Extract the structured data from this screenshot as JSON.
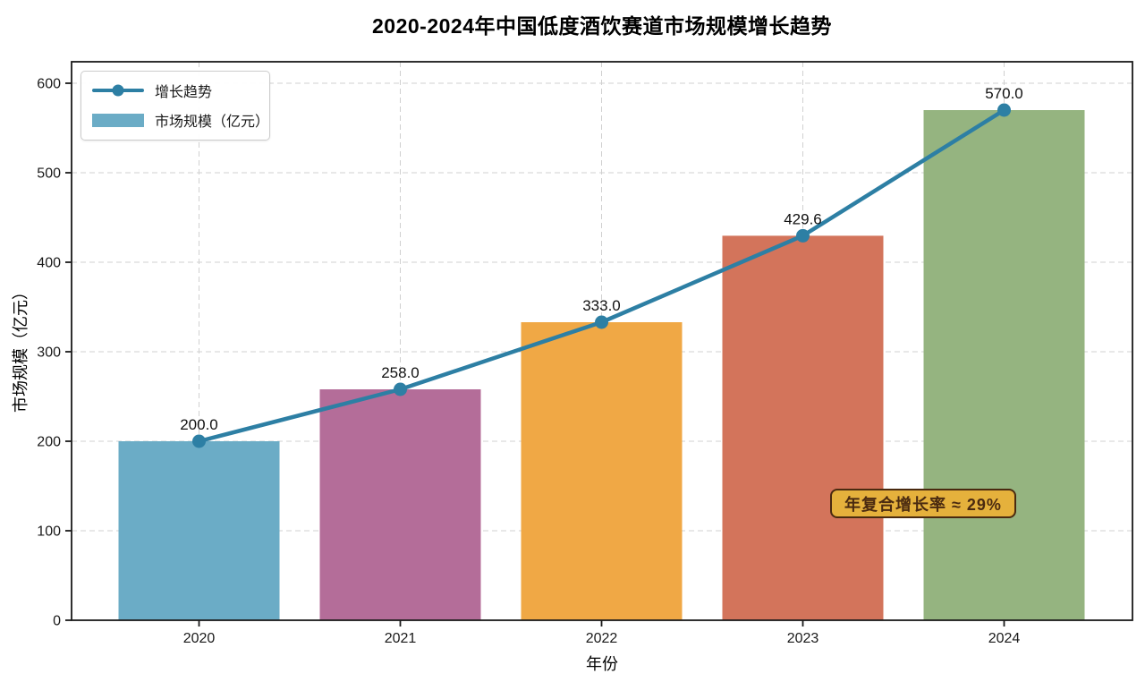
{
  "title": "2020-2024年中国低度酒饮赛道市场规模增长趋势",
  "chart_data": {
    "type": "bar",
    "categories": [
      "2020",
      "2021",
      "2022",
      "2023",
      "2024"
    ],
    "series": [
      {
        "name": "市场规模（亿元）",
        "type": "bar",
        "values": [
          200.0,
          258.0,
          333.0,
          429.6,
          570.0
        ],
        "colors": [
          "#6bacc6",
          "#b46d99",
          "#f0a845",
          "#d3745b",
          "#95b480"
        ]
      },
      {
        "name": "增长趋势",
        "type": "line",
        "values": [
          200.0,
          258.0,
          333.0,
          429.6,
          570.0
        ],
        "color": "#2d7fa4"
      }
    ],
    "value_labels": [
      "200.0",
      "258.0",
      "333.0",
      "429.6",
      "570.0"
    ],
    "title": "2020-2024年中国低度酒饮赛道市场规模增长趋势",
    "xlabel": "年份",
    "ylabel": "市场规模（亿元）",
    "ylim": [
      0,
      624
    ],
    "yticks": [
      0,
      100,
      200,
      300,
      400,
      500,
      600
    ],
    "grid": "dashed",
    "legend_position": "top-left",
    "annotation": {
      "text": "年复合增长率 ≈ 29%",
      "bg": "#e5b13c",
      "border": "#4a2a10",
      "color": "#4a2a10"
    }
  },
  "legend": {
    "items": [
      {
        "label": "增长趋势",
        "type": "line",
        "color": "#2d7fa4"
      },
      {
        "label": "市场规模（亿元）",
        "type": "bar",
        "color": "#6bacc6"
      }
    ]
  },
  "colors": {
    "grid": "#d0d0d0",
    "spine": "#1a1a1a",
    "tick_label": "#1a1a1a",
    "value_label": "#111111"
  }
}
